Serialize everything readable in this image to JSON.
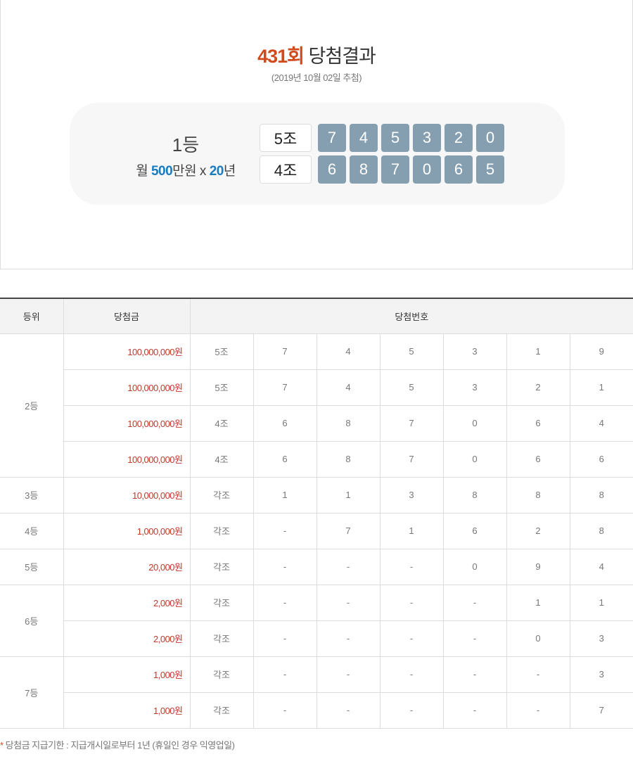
{
  "header": {
    "round": "431회",
    "title": "당첨결과",
    "date": "(2019년 10월 02일 추첨)"
  },
  "first": {
    "rank": "1등",
    "prize_prefix": "월 ",
    "prize_amount": "500",
    "prize_unit": "만원 x ",
    "prize_years": "20",
    "prize_suffix": "년",
    "rows": [
      {
        "group": "5조",
        "numbers": [
          "7",
          "4",
          "5",
          "3",
          "2",
          "0"
        ]
      },
      {
        "group": "4조",
        "numbers": [
          "6",
          "8",
          "7",
          "0",
          "6",
          "5"
        ]
      }
    ]
  },
  "colors": {
    "accent": "#d04a1c",
    "blue": "#1a7bbf",
    "ball": "#859fb1"
  },
  "table": {
    "headers": [
      "등위",
      "당첨금",
      "당첨번호"
    ],
    "groups": [
      {
        "rank": "2등",
        "rows": [
          {
            "amount": "100,000,000원",
            "group": "5조",
            "digits": [
              "7",
              "4",
              "5",
              "3",
              "1",
              "9"
            ]
          },
          {
            "amount": "100,000,000원",
            "group": "5조",
            "digits": [
              "7",
              "4",
              "5",
              "3",
              "2",
              "1"
            ]
          },
          {
            "amount": "100,000,000원",
            "group": "4조",
            "digits": [
              "6",
              "8",
              "7",
              "0",
              "6",
              "4"
            ]
          },
          {
            "amount": "100,000,000원",
            "group": "4조",
            "digits": [
              "6",
              "8",
              "7",
              "0",
              "6",
              "6"
            ]
          }
        ]
      },
      {
        "rank": "3등",
        "rows": [
          {
            "amount": "10,000,000원",
            "group": "각조",
            "digits": [
              "1",
              "1",
              "3",
              "8",
              "8",
              "8"
            ]
          }
        ]
      },
      {
        "rank": "4등",
        "rows": [
          {
            "amount": "1,000,000원",
            "group": "각조",
            "digits": [
              "-",
              "7",
              "1",
              "6",
              "2",
              "8"
            ]
          }
        ]
      },
      {
        "rank": "5등",
        "rows": [
          {
            "amount": "20,000원",
            "group": "각조",
            "digits": [
              "-",
              "-",
              "-",
              "0",
              "9",
              "4"
            ]
          }
        ]
      },
      {
        "rank": "6등",
        "rows": [
          {
            "amount": "2,000원",
            "group": "각조",
            "digits": [
              "-",
              "-",
              "-",
              "-",
              "1",
              "1"
            ]
          },
          {
            "amount": "2,000원",
            "group": "각조",
            "digits": [
              "-",
              "-",
              "-",
              "-",
              "0",
              "3"
            ]
          }
        ]
      },
      {
        "rank": "7등",
        "rows": [
          {
            "amount": "1,000원",
            "group": "각조",
            "digits": [
              "-",
              "-",
              "-",
              "-",
              "-",
              "3"
            ]
          },
          {
            "amount": "1,000원",
            "group": "각조",
            "digits": [
              "-",
              "-",
              "-",
              "-",
              "-",
              "7"
            ]
          }
        ]
      }
    ]
  },
  "note": {
    "star": "*",
    "text": " 당첨금 지급기한 : 지급개시일로부터 1년 (휴일인 경우 익영업일)"
  }
}
